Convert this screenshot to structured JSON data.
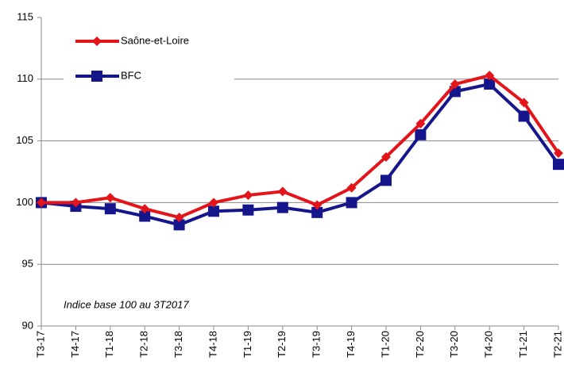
{
  "chart_data": {
    "type": "line",
    "categories": [
      "T3-17",
      "T4-17",
      "T1-18",
      "T2-18",
      "T3-18",
      "T4-18",
      "T1-19",
      "T2-19",
      "T3-19",
      "T4-19",
      "T1-20",
      "T2-20",
      "T3-20",
      "T4-20",
      "T1-21",
      "T2-21"
    ],
    "series": [
      {
        "name": "Saône-et-Loire",
        "color": "#e3151a",
        "marker": "diamond",
        "values": [
          100.0,
          100.0,
          100.4,
          99.5,
          98.8,
          100.0,
          100.6,
          100.9,
          99.8,
          101.2,
          103.7,
          106.4,
          109.6,
          110.3,
          108.1,
          104.0
        ]
      },
      {
        "name": "BFC",
        "color": "#16168c",
        "marker": "square",
        "values": [
          100.0,
          99.7,
          99.5,
          98.9,
          98.2,
          99.3,
          99.4,
          99.6,
          99.2,
          100.0,
          101.8,
          105.5,
          109.0,
          109.6,
          107.0,
          103.1
        ]
      }
    ],
    "ylim": [
      90,
      115
    ],
    "yticks": [
      90,
      95,
      100,
      105,
      110,
      115
    ],
    "grid": true,
    "annotation": "Indice base 100 au 3T2017",
    "legend": "upper-left"
  }
}
